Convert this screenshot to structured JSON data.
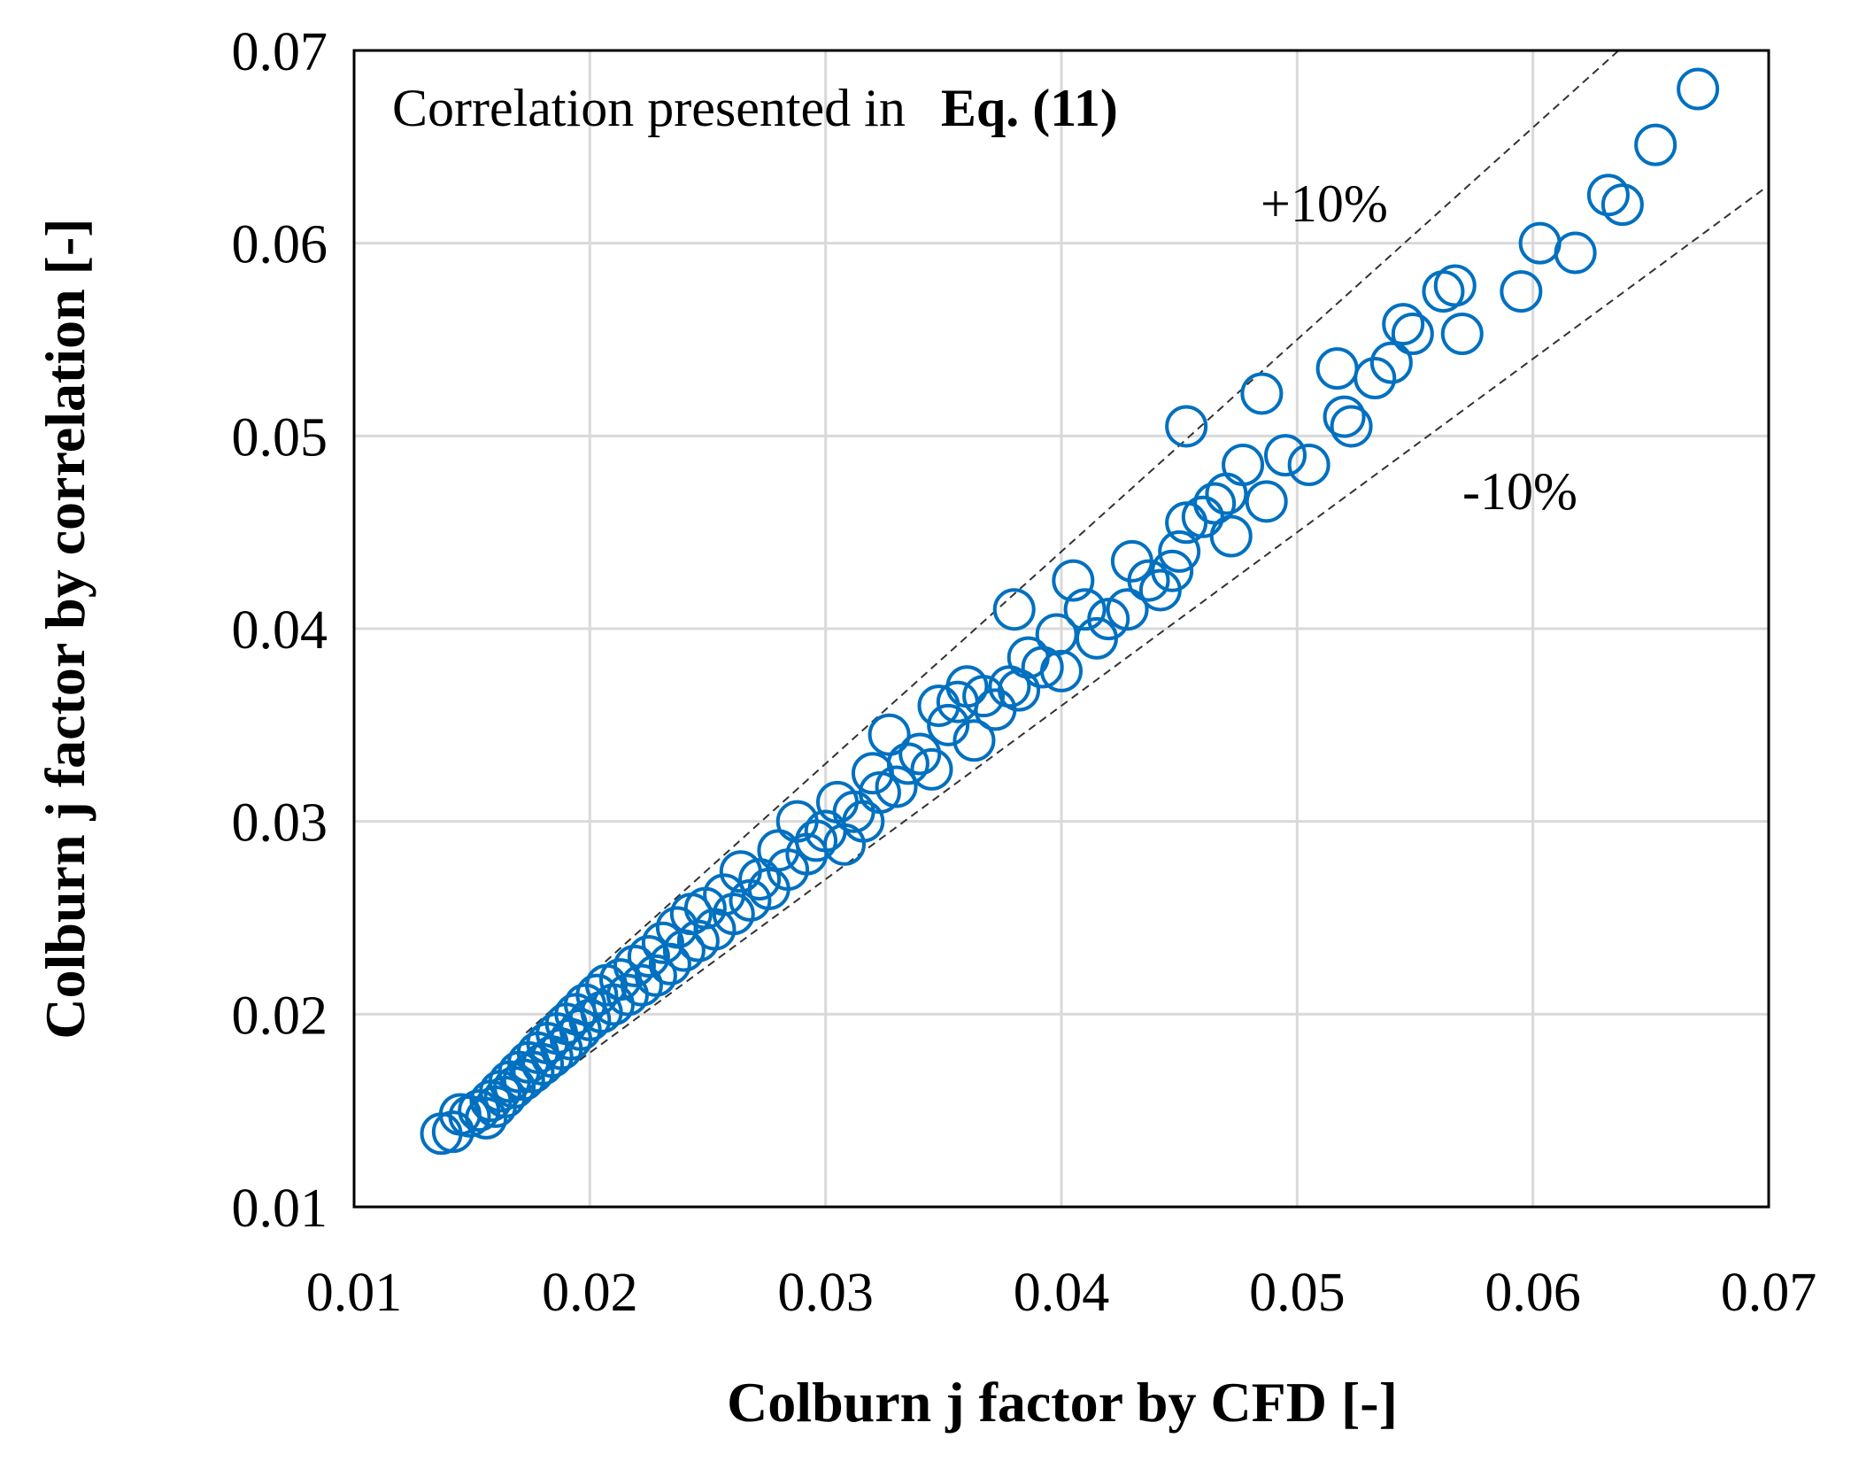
{
  "chart_data": {
    "type": "scatter",
    "title": "",
    "xlabel": "Colburn j factor by CFD [-]",
    "ylabel": "Colburn j factor by correlation [-]",
    "xlim": [
      0.01,
      0.07
    ],
    "ylim": [
      0.01,
      0.07
    ],
    "xticks": [
      "0.01",
      "0.02",
      "0.03",
      "0.04",
      "0.05",
      "0.06",
      "0.07"
    ],
    "yticks": [
      "0.01",
      "0.02",
      "0.03",
      "0.04",
      "0.05",
      "0.06",
      "0.07"
    ],
    "grid": true,
    "annotations": {
      "correlation_prefix": "Correlation presented in",
      "correlation_eq": "Eq. (11)",
      "upper_bound": "+10%",
      "lower_bound": "-10%"
    },
    "bounds": {
      "upper_factor": 1.1,
      "lower_factor": 0.9,
      "x_range": [
        0.0173,
        0.0699
      ]
    },
    "marker_color": "#0070c0",
    "series": [
      {
        "name": "data",
        "points": [
          [
            0.0137,
            0.0138
          ],
          [
            0.0142,
            0.0139
          ],
          [
            0.0145,
            0.0148
          ],
          [
            0.0149,
            0.0147
          ],
          [
            0.0153,
            0.015
          ],
          [
            0.0156,
            0.0146
          ],
          [
            0.0158,
            0.0155
          ],
          [
            0.016,
            0.0152
          ],
          [
            0.0162,
            0.016
          ],
          [
            0.0164,
            0.0157
          ],
          [
            0.0166,
            0.0165
          ],
          [
            0.0168,
            0.0162
          ],
          [
            0.017,
            0.017
          ],
          [
            0.0172,
            0.0166
          ],
          [
            0.0174,
            0.0175
          ],
          [
            0.0176,
            0.017
          ],
          [
            0.0178,
            0.018
          ],
          [
            0.018,
            0.0174
          ],
          [
            0.0182,
            0.0185
          ],
          [
            0.0184,
            0.0178
          ],
          [
            0.0186,
            0.019
          ],
          [
            0.0188,
            0.0182
          ],
          [
            0.019,
            0.0195
          ],
          [
            0.0192,
            0.0187
          ],
          [
            0.0194,
            0.02
          ],
          [
            0.0196,
            0.0192
          ],
          [
            0.0198,
            0.0205
          ],
          [
            0.02,
            0.0197
          ],
          [
            0.0203,
            0.021
          ],
          [
            0.0205,
            0.0201
          ],
          [
            0.0207,
            0.0215
          ],
          [
            0.021,
            0.0205
          ],
          [
            0.0213,
            0.0218
          ],
          [
            0.0216,
            0.021
          ],
          [
            0.0219,
            0.0225
          ],
          [
            0.0222,
            0.0215
          ],
          [
            0.0225,
            0.023
          ],
          [
            0.0228,
            0.022
          ],
          [
            0.0231,
            0.0237
          ],
          [
            0.0234,
            0.0226
          ],
          [
            0.0237,
            0.0245
          ],
          [
            0.024,
            0.0233
          ],
          [
            0.0243,
            0.0252
          ],
          [
            0.0246,
            0.0238
          ],
          [
            0.0249,
            0.0255
          ],
          [
            0.0253,
            0.0244
          ],
          [
            0.0257,
            0.0262
          ],
          [
            0.0261,
            0.0252
          ],
          [
            0.0264,
            0.0274
          ],
          [
            0.0268,
            0.0259
          ],
          [
            0.0272,
            0.027
          ],
          [
            0.0276,
            0.0265
          ],
          [
            0.028,
            0.0285
          ],
          [
            0.0284,
            0.0275
          ],
          [
            0.0288,
            0.03
          ],
          [
            0.0292,
            0.0283
          ],
          [
            0.0296,
            0.029
          ],
          [
            0.03,
            0.0295
          ],
          [
            0.0305,
            0.031
          ],
          [
            0.0308,
            0.0288
          ],
          [
            0.0312,
            0.0305
          ],
          [
            0.0316,
            0.03
          ],
          [
            0.032,
            0.0325
          ],
          [
            0.0323,
            0.0315
          ],
          [
            0.0327,
            0.0345
          ],
          [
            0.033,
            0.0318
          ],
          [
            0.0335,
            0.033
          ],
          [
            0.034,
            0.0335
          ],
          [
            0.0345,
            0.0327
          ],
          [
            0.0348,
            0.036
          ],
          [
            0.0352,
            0.035
          ],
          [
            0.0356,
            0.0362
          ],
          [
            0.036,
            0.037
          ],
          [
            0.0363,
            0.0342
          ],
          [
            0.0367,
            0.0365
          ],
          [
            0.0372,
            0.0358
          ],
          [
            0.0378,
            0.037
          ],
          [
            0.0382,
            0.0368
          ],
          [
            0.038,
            0.041
          ],
          [
            0.0386,
            0.0385
          ],
          [
            0.0392,
            0.038
          ],
          [
            0.0398,
            0.0397
          ],
          [
            0.04,
            0.0378
          ],
          [
            0.0405,
            0.0425
          ],
          [
            0.041,
            0.041
          ],
          [
            0.0415,
            0.0395
          ],
          [
            0.042,
            0.0405
          ],
          [
            0.0428,
            0.041
          ],
          [
            0.043,
            0.0435
          ],
          [
            0.0437,
            0.0425
          ],
          [
            0.0442,
            0.042
          ],
          [
            0.0447,
            0.043
          ],
          [
            0.045,
            0.044
          ],
          [
            0.0453,
            0.0455
          ],
          [
            0.0453,
            0.0505
          ],
          [
            0.046,
            0.0458
          ],
          [
            0.0465,
            0.0465
          ],
          [
            0.047,
            0.047
          ],
          [
            0.0472,
            0.0448
          ],
          [
            0.0477,
            0.0485
          ],
          [
            0.0485,
            0.0522
          ],
          [
            0.0487,
            0.0466
          ],
          [
            0.0495,
            0.049
          ],
          [
            0.0505,
            0.0485
          ],
          [
            0.0517,
            0.0535
          ],
          [
            0.052,
            0.051
          ],
          [
            0.0523,
            0.0505
          ],
          [
            0.0533,
            0.053
          ],
          [
            0.054,
            0.0538
          ],
          [
            0.0545,
            0.0558
          ],
          [
            0.0549,
            0.0553
          ],
          [
            0.0562,
            0.0575
          ],
          [
            0.0567,
            0.0578
          ],
          [
            0.057,
            0.0553
          ],
          [
            0.0595,
            0.0575
          ],
          [
            0.0603,
            0.06
          ],
          [
            0.0618,
            0.0595
          ],
          [
            0.0632,
            0.0625
          ],
          [
            0.0638,
            0.062
          ],
          [
            0.0652,
            0.0651
          ],
          [
            0.067,
            0.068
          ]
        ]
      }
    ]
  }
}
